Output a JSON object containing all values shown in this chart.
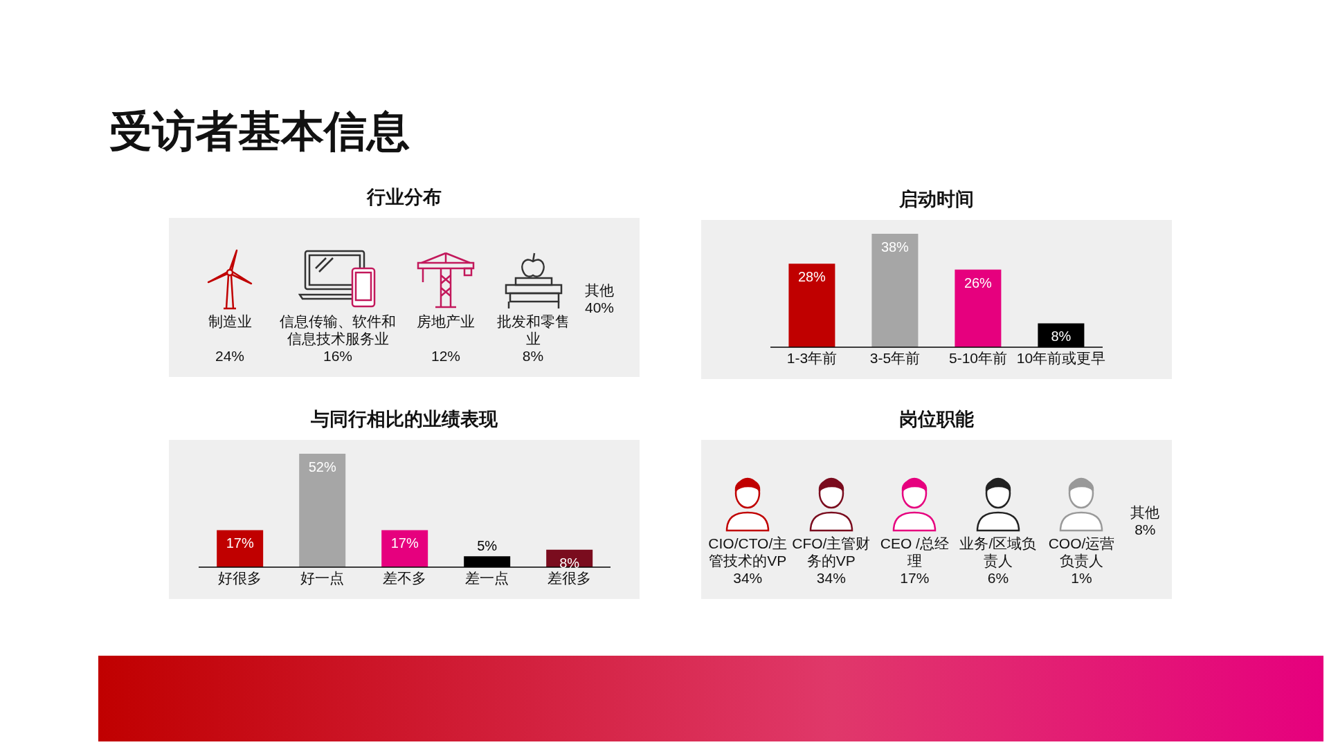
{
  "chart_data": [
    {
      "type": "other",
      "title": "行业分布",
      "annotations": [
        "受访者基本信息"
      ],
      "categories": [
        "制造业",
        "信息传输、软件和信息技术服务业",
        "房地产业",
        "批发和零售业",
        "其他"
      ],
      "values": [
        24,
        16,
        12,
        8,
        40
      ],
      "value_labels": [
        "24%",
        "16%",
        "12%",
        "8%",
        "40%"
      ]
    },
    {
      "type": "bar",
      "title": "启动时间",
      "categories": [
        "1-3年前",
        "3-5年前",
        "5-10年前",
        "10年前或更早"
      ],
      "values": [
        28,
        38,
        26,
        8
      ],
      "colors": [
        "#c00000",
        "#a6a6a6",
        "#e6007e",
        "#000000"
      ],
      "value_labels": [
        "28%",
        "38%",
        "26%",
        "8%"
      ]
    },
    {
      "type": "bar",
      "title": "与同行相比的业绩表现",
      "categories": [
        "好很多",
        "好一点",
        "差不多",
        "差一点",
        "差很多"
      ],
      "values": [
        17,
        52,
        17,
        5,
        8
      ],
      "colors": [
        "#c00000",
        "#a6a6a6",
        "#e6007e",
        "#000000",
        "#7a0c1e"
      ],
      "value_labels": [
        "17%",
        "52%",
        "17%",
        "5%",
        "8%"
      ]
    },
    {
      "type": "other",
      "title": "岗位职能",
      "categories": [
        "CIO/CTO/主管技术的VP",
        "CFO/主管财务的VP",
        "CEO /总经理",
        "业务/区域负责人",
        "COO/运营负责人",
        "其他"
      ],
      "values": [
        34,
        34,
        17,
        6,
        1,
        8
      ],
      "value_labels": [
        "34%",
        "34%",
        "17%",
        "6%",
        "1%",
        "8%"
      ]
    }
  ]
}
